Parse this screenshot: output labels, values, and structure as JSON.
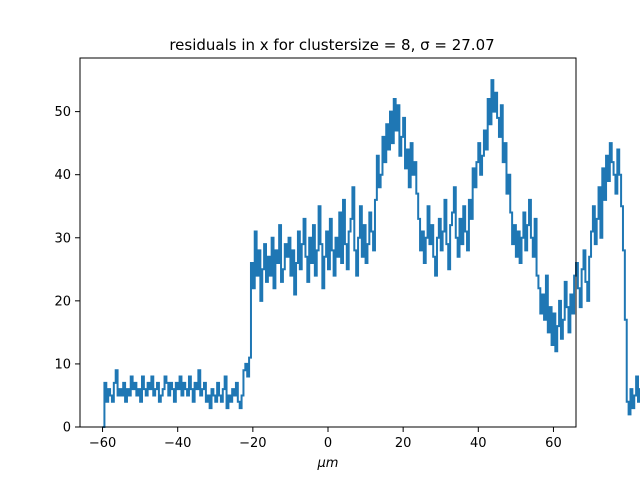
{
  "chart_data": {
    "type": "line",
    "drawstyle": "steps",
    "title": "residuals in x for clustersize = 8, σ = 27.07",
    "xlabel": "μm",
    "ylabel": "",
    "xlim": [
      -66,
      66
    ],
    "ylim": [
      0,
      58.5
    ],
    "xticks": [
      -60,
      -40,
      -20,
      0,
      20,
      40,
      60
    ],
    "yticks": [
      0,
      10,
      20,
      30,
      40,
      50
    ],
    "grid": false,
    "color": "#1f77b4",
    "series": [
      {
        "x_start": -60,
        "x_step": 0.5,
        "values": [
          0,
          7,
          4,
          6,
          5,
          4,
          7,
          9,
          5,
          6,
          5,
          7,
          4,
          6,
          5,
          8,
          6,
          7,
          5,
          6,
          4,
          8,
          6,
          5,
          7,
          6,
          8,
          5,
          6,
          7,
          4,
          5,
          6,
          8,
          7,
          5,
          7,
          6,
          4,
          7,
          6,
          8,
          5,
          7,
          6,
          5,
          8,
          6,
          4,
          7,
          6,
          9,
          5,
          6,
          7,
          4,
          5,
          3,
          6,
          5,
          4,
          7,
          5,
          4,
          6,
          8,
          3,
          5,
          4,
          6,
          5,
          7,
          4,
          3,
          5,
          9,
          10,
          8,
          11,
          26,
          22,
          31,
          24,
          28,
          20,
          25,
          29,
          23,
          27,
          24,
          30,
          22,
          28,
          26,
          32,
          23,
          25,
          29,
          27,
          30,
          24,
          28,
          21,
          26,
          31,
          25,
          29,
          33,
          27,
          23,
          30,
          26,
          32,
          24,
          28,
          35,
          29,
          22,
          27,
          31,
          25,
          33,
          28,
          24,
          30,
          27,
          34,
          26,
          36,
          29,
          25,
          31,
          33,
          38,
          28,
          24,
          30,
          35,
          27,
          32,
          26,
          29,
          34,
          31,
          28,
          36,
          43,
          38,
          40,
          46,
          42,
          48,
          44,
          50,
          45,
          52,
          47,
          51,
          43,
          46,
          49,
          41,
          44,
          38,
          45,
          40,
          42,
          37,
          33,
          28,
          31,
          26,
          30,
          35,
          29,
          32,
          27,
          24,
          30,
          33,
          28,
          31,
          36,
          29,
          25,
          32,
          34,
          38,
          30,
          27,
          33,
          29,
          35,
          31,
          28,
          36,
          33,
          41,
          38,
          42,
          45,
          40,
          43,
          47,
          44,
          52,
          48,
          55,
          50,
          53,
          49,
          46,
          51,
          42,
          45,
          37,
          40,
          34,
          29,
          32,
          27,
          31,
          26,
          30,
          34,
          28,
          32,
          36,
          30,
          27,
          33,
          24,
          22,
          18,
          21,
          17,
          24,
          15,
          19,
          13,
          18,
          12,
          16,
          20,
          14,
          17,
          23,
          19,
          15,
          21,
          18,
          24,
          26,
          22,
          19,
          25,
          28,
          23,
          20,
          27,
          31,
          35,
          29,
          33,
          38,
          30,
          41,
          36,
          43,
          39,
          45,
          42,
          40,
          37,
          44,
          40,
          35,
          28,
          17,
          4,
          2,
          6,
          3,
          5,
          8,
          4,
          6,
          3,
          7,
          5,
          2,
          6,
          4,
          3,
          5,
          7,
          4,
          3,
          6,
          2,
          5,
          4,
          7,
          3,
          6,
          4,
          5,
          8,
          6,
          4,
          5,
          7,
          3,
          6,
          9,
          5,
          7,
          4,
          8,
          6,
          10,
          7,
          5,
          8,
          4,
          6,
          9,
          5,
          11,
          7,
          4,
          6,
          10,
          8,
          5,
          12,
          9,
          6,
          4,
          7,
          5,
          10,
          6,
          4,
          9,
          5,
          3,
          7,
          4,
          8,
          2,
          5,
          3,
          0
        ]
      }
    ]
  }
}
